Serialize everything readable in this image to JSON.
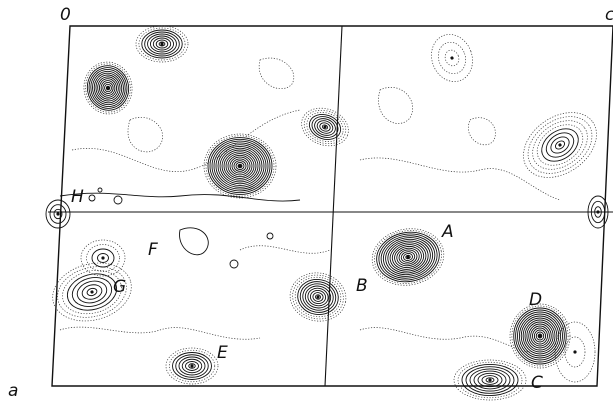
{
  "figure": {
    "origin_label": "0",
    "axis_a_label": "a",
    "axis_c_label": "c"
  },
  "peaks": [
    {
      "id": "A",
      "label": "A"
    },
    {
      "id": "B",
      "label": "B"
    },
    {
      "id": "C",
      "label": "C"
    },
    {
      "id": "D",
      "label": "D"
    },
    {
      "id": "E",
      "label": "E"
    },
    {
      "id": "F",
      "label": "F"
    },
    {
      "id": "G",
      "label": "G"
    },
    {
      "id": "H",
      "label": "H"
    }
  ],
  "colors": {
    "ink": "#111111",
    "background": "#ffffff"
  }
}
